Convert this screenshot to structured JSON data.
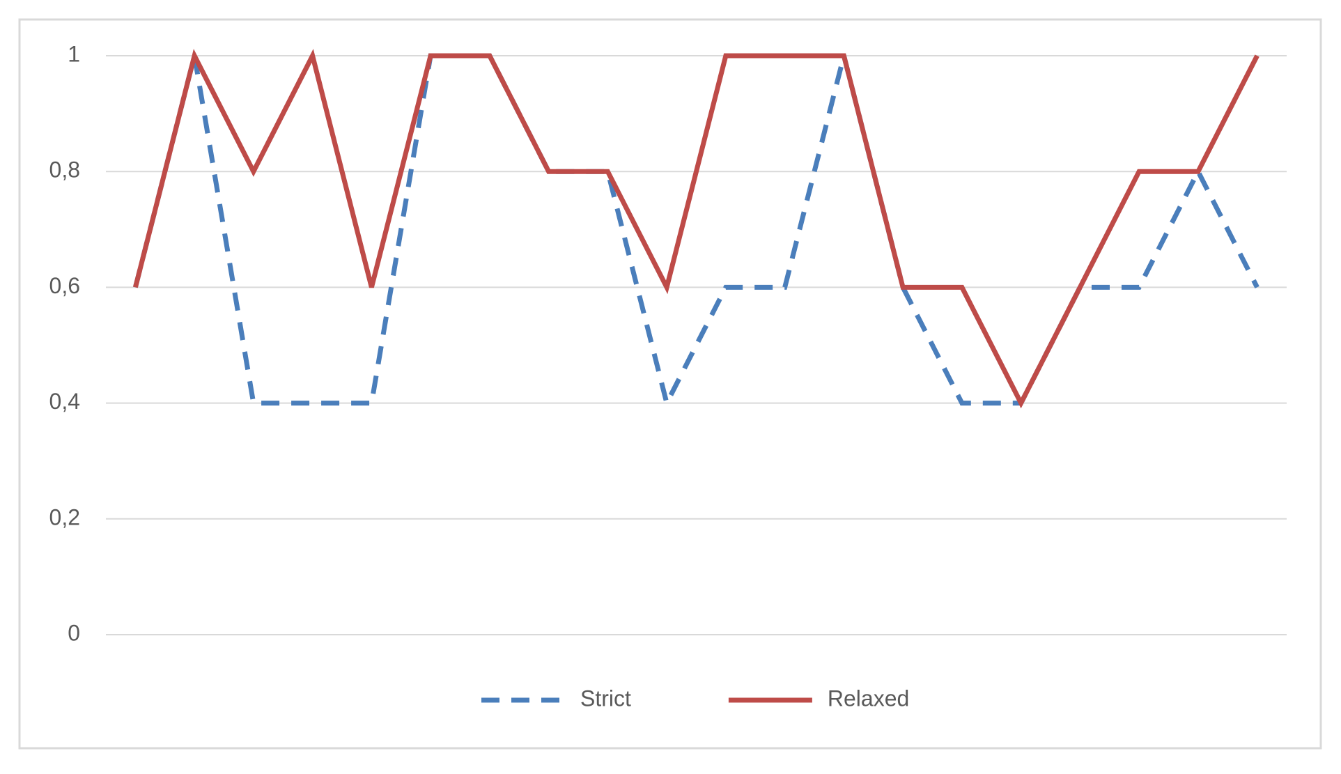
{
  "chart_data": {
    "type": "line",
    "categories": [
      null,
      null,
      null,
      null,
      null,
      null,
      null,
      null,
      null,
      null,
      null,
      null,
      null,
      null,
      null,
      null,
      null,
      null,
      null,
      null
    ],
    "series": [
      {
        "name": "Strict",
        "color": "#4a7ebb",
        "dash": true,
        "values": [
          0.6,
          1,
          0.4,
          0.4,
          0.4,
          1,
          1,
          0.8,
          0.8,
          0.4,
          0.6,
          0.6,
          1,
          0.6,
          0.4,
          0.4,
          0.6,
          0.6,
          0.8,
          0.6
        ]
      },
      {
        "name": "Relaxed",
        "color": "#be4b48",
        "dash": false,
        "values": [
          0.6,
          1,
          0.8,
          1,
          0.6,
          1,
          1,
          0.8,
          0.8,
          0.6,
          1,
          1,
          1,
          0.6,
          0.6,
          0.4,
          0.6,
          0.8,
          0.8,
          1
        ]
      }
    ],
    "ylim": [
      0,
      1
    ],
    "yticks": [
      0,
      {
        "value": 0.2,
        "label": "0,2"
      },
      {
        "value": 0.4,
        "label": "0,4"
      },
      {
        "value": 0.6,
        "label": "0,6"
      },
      {
        "value": 0.8,
        "label": "0,8"
      },
      1
    ],
    "grid": true,
    "legend": "bottom"
  }
}
